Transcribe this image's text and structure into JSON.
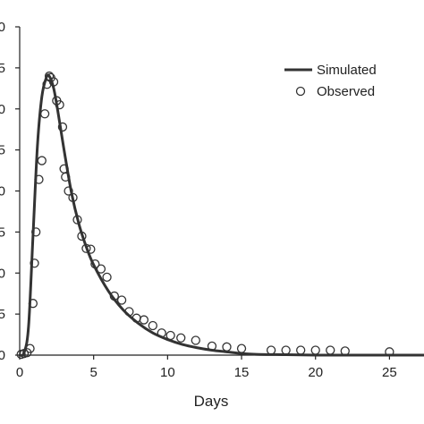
{
  "chart_data": {
    "type": "scatter",
    "xlabel": "Days",
    "ylabel": "",
    "xlim": [
      0,
      28
    ],
    "ylim": [
      0,
      4
    ],
    "x_ticks": [
      "0",
      "5",
      "10",
      "15",
      "20",
      "25"
    ],
    "y_ticks": [
      "0",
      "5",
      "0",
      "5",
      "0",
      "5",
      "0",
      "5",
      "0"
    ],
    "grid": false,
    "legend_position": "top-right",
    "series": [
      {
        "name": "Simulated",
        "kind": "line",
        "color": "#333333",
        "x": [
          0,
          0.3,
          0.6,
          0.9,
          1.2,
          1.5,
          1.8,
          2.0,
          2.3,
          2.6,
          3.0,
          3.5,
          4.0,
          4.5,
          5.0,
          6.0,
          7.0,
          8.0,
          9.0,
          10.0,
          11.0,
          12.0,
          13.0,
          14.0,
          15.0,
          16.0,
          18.0,
          20.0,
          22.0,
          25.0,
          28.0
        ],
        "y": [
          0.0,
          0.03,
          0.35,
          1.45,
          2.55,
          3.15,
          3.38,
          3.4,
          3.25,
          2.95,
          2.5,
          1.98,
          1.6,
          1.32,
          1.1,
          0.78,
          0.55,
          0.39,
          0.27,
          0.19,
          0.13,
          0.09,
          0.06,
          0.04,
          0.02,
          0.01,
          0.005,
          0.0,
          0.0,
          0.0,
          0.0
        ]
      },
      {
        "name": "Observed",
        "kind": "points",
        "color": "#333333",
        "x": [
          0.1,
          0.3,
          0.5,
          0.7,
          0.9,
          1.0,
          1.1,
          1.3,
          1.5,
          1.7,
          1.85,
          2.0,
          2.1,
          2.3,
          2.5,
          2.7,
          2.9,
          3.0,
          3.1,
          3.3,
          3.6,
          3.9,
          4.2,
          4.5,
          4.8,
          5.1,
          5.5,
          5.9,
          6.4,
          6.9,
          7.4,
          7.9,
          8.4,
          9.0,
          9.6,
          10.2,
          10.9,
          11.9,
          13.0,
          14.0,
          15.0,
          17.0,
          18.0,
          19.0,
          20.0,
          21.0,
          22.0,
          25.0
        ],
        "y": [
          0.01,
          0.02,
          0.03,
          0.08,
          0.63,
          1.12,
          1.5,
          2.14,
          2.37,
          2.94,
          3.3,
          3.4,
          3.38,
          3.33,
          3.1,
          3.05,
          2.78,
          2.27,
          2.17,
          2.0,
          1.92,
          1.65,
          1.45,
          1.3,
          1.29,
          1.11,
          1.05,
          0.95,
          0.72,
          0.67,
          0.53,
          0.45,
          0.43,
          0.36,
          0.27,
          0.24,
          0.21,
          0.18,
          0.11,
          0.1,
          0.08,
          0.06,
          0.06,
          0.06,
          0.06,
          0.06,
          0.05,
          0.04
        ]
      }
    ]
  }
}
